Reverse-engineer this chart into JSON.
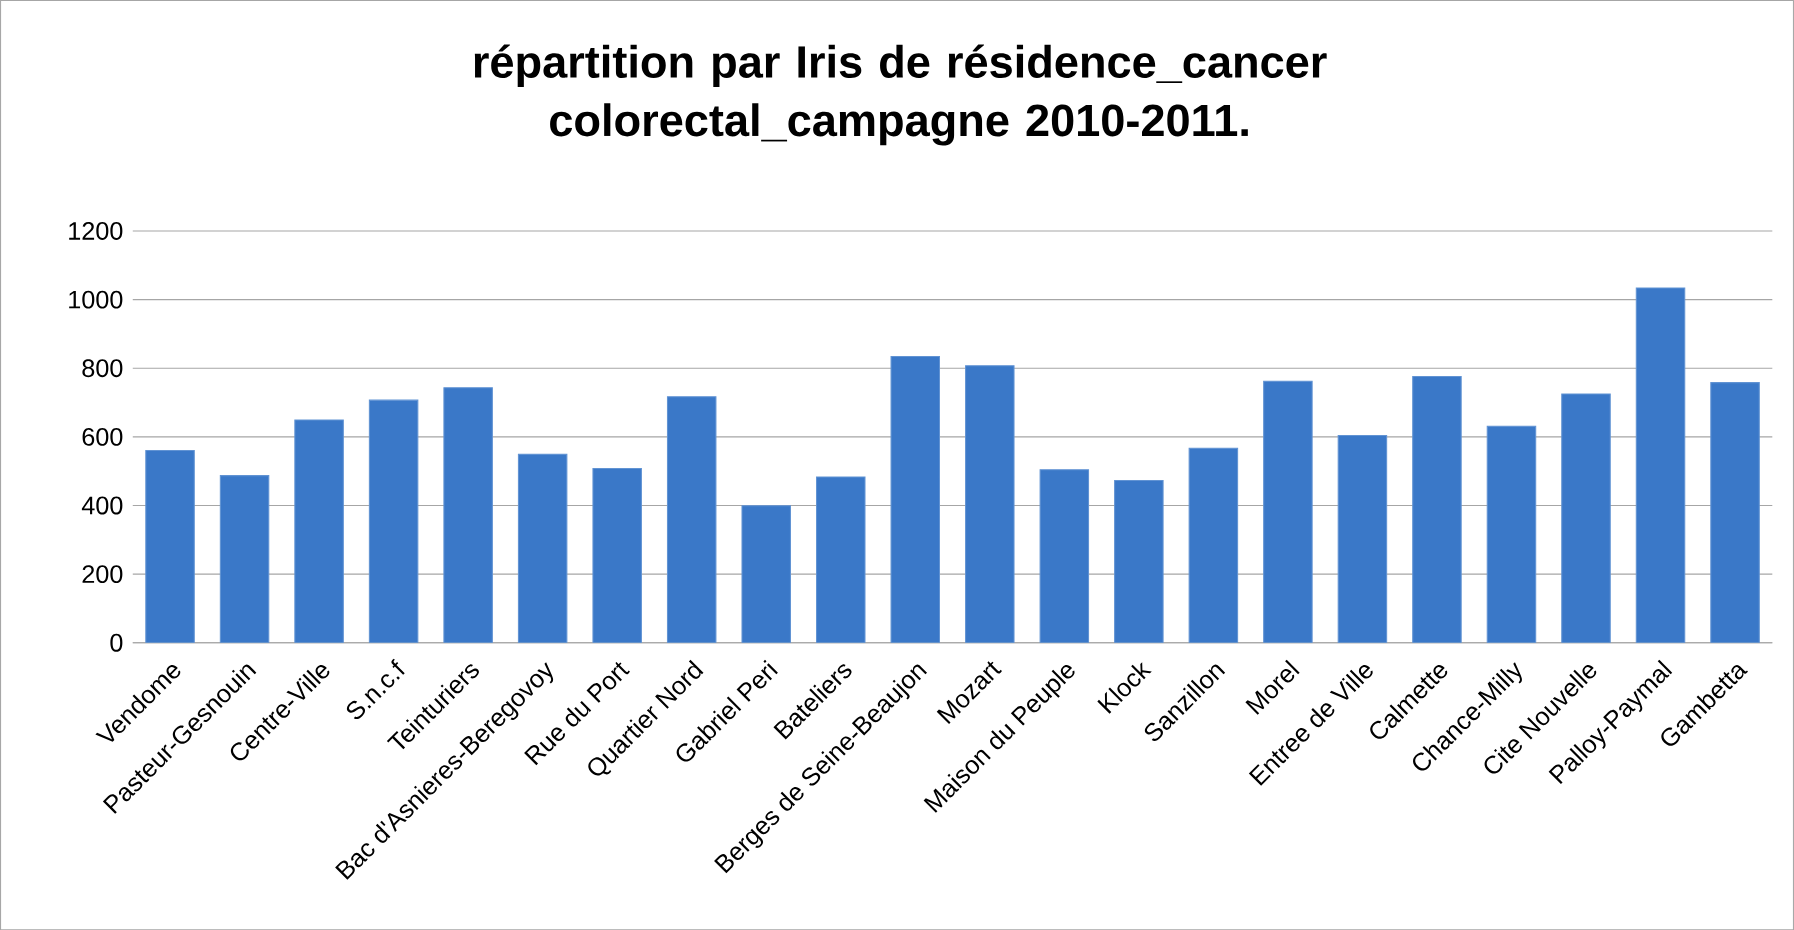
{
  "chart_data": {
    "type": "bar",
    "title": "répartition par Iris de résidence_cancer colorectal_campagne 2010-2011.",
    "categories": [
      "Vendome",
      "Pasteur-Gesnouin",
      "Centre-Ville",
      "S.n.c.f",
      "Teinturiers",
      "Bac d'Asnieres-Beregovoy",
      "Rue du Port",
      "Quartier Nord",
      "Gabriel Peri",
      "Bateliers",
      "Berges de Seine-Beaujon",
      "Mozart",
      "Maison du Peuple",
      "Klock",
      "Sanzillon",
      "Morel",
      "Entree de Ville",
      "Calmette",
      "Chance-Milly",
      "Cite Nouvelle",
      "Palloy-Paymal",
      "Gambetta"
    ],
    "values": [
      560,
      487,
      649,
      707,
      743,
      549,
      508,
      717,
      399,
      483,
      834,
      807,
      504,
      473,
      567,
      762,
      604,
      776,
      631,
      725,
      1034,
      758
    ],
    "color": "#3a78c8",
    "ylim": [
      0,
      1200
    ],
    "yticks": [
      0,
      200,
      400,
      600,
      800,
      1000,
      1200
    ],
    "grid": "y"
  }
}
